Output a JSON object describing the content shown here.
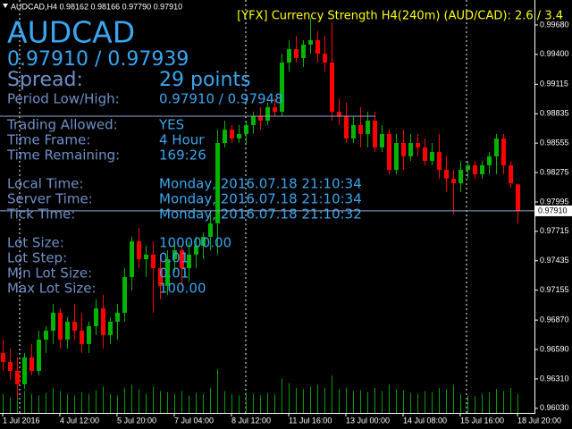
{
  "header": "AUDCAD,H4  0.98162 0.98166 0.97790 0.97910",
  "indicator_title": "[YFX] Currency Strength H4(240m) (AUD/CAD): 2.6 / 3.4",
  "info_panel": {
    "symbol": "AUDCAD",
    "prices": "0.97910 / 0.97939",
    "spread_label": "Spread:",
    "spread_value": "29 points",
    "rows": [
      [
        "Period Low/High:",
        "0.97910 / 0.97948"
      ],
      [
        "Trading Allowed:",
        "YES"
      ],
      [
        "Time Frame:",
        "4 Hour"
      ],
      [
        "Time Remaining:",
        "169:26"
      ],
      [
        "Local Time:",
        "Monday, 2016.07.18 21:10:34"
      ],
      [
        "Server Time:",
        "Monday, 2016.07.18 21:10:34"
      ],
      [
        "Tick Time:",
        "Monday, 2016.07.18 21:10:32"
      ],
      [
        "Lot Size:",
        "100000.00"
      ],
      [
        "Lot Step:",
        "0.01"
      ],
      [
        "Min Lot Size:",
        "0.01"
      ],
      [
        "Max Lot Size:",
        "100.00"
      ]
    ]
  },
  "chart_data": {
    "type": "candlestick",
    "categories": [
      "1 Jul 2016",
      null,
      null,
      null,
      null,
      null,
      null,
      null,
      "4 Jul 12:00",
      null,
      null,
      null,
      null,
      null,
      null,
      null,
      "5 Jul 20:00",
      null,
      null,
      null,
      null,
      null,
      null,
      null,
      "7 Jul 04:00",
      null,
      null,
      null,
      null,
      null,
      null,
      null,
      "8 Jul 12:00",
      null,
      null,
      null,
      null,
      null,
      null,
      null,
      "11 Jul 16:00",
      null,
      null,
      null,
      null,
      null,
      null,
      null,
      "13 Jul 00:00",
      null,
      null,
      null,
      null,
      null,
      null,
      null,
      "14 Jul 08:00",
      null,
      null,
      null,
      null,
      null,
      null,
      null,
      "15 Jul 16:00",
      null,
      null,
      null,
      null,
      null,
      null,
      null,
      "18 Jul 20:00"
    ],
    "open": [
      0.96557,
      0.96471,
      0.96386,
      0.96259,
      0.96514,
      0.96386,
      0.96684,
      0.96769,
      0.9694,
      0.96684,
      0.96854,
      0.96769,
      0.96642,
      0.96812,
      0.96982,
      0.96727,
      0.96854,
      0.9694,
      0.9728,
      0.9762,
      0.9745,
      0.97493,
      0.97365,
      0.97195,
      0.9745,
      0.97535,
      0.97365,
      0.97493,
      0.97578,
      0.97663,
      0.97791,
      0.98556,
      0.98684,
      0.98599,
      0.98642,
      0.98727,
      0.98812,
      0.98769,
      0.98897,
      0.98854,
      0.99322,
      0.9945,
      0.99365,
      0.99493,
      0.99535,
      0.99407,
      0.99322,
      0.98854,
      0.98812,
      0.98599,
      0.98727,
      0.98642,
      0.98769,
      0.98514,
      0.98642,
      0.98301,
      0.98556,
      0.98429,
      0.98556,
      0.98514,
      0.98386,
      0.98471,
      0.98301,
      0.98216,
      0.98173,
      0.98301,
      0.98344,
      0.98259,
      0.98344,
      0.98429,
      0.98599,
      0.98344,
      0.98162
    ],
    "high": [
      0.96684,
      0.96599,
      0.96514,
      0.96557,
      0.96642,
      0.96769,
      0.96812,
      0.97025,
      0.96982,
      0.96897,
      0.97025,
      0.9694,
      0.96854,
      0.97067,
      0.9711,
      0.96897,
      0.97025,
      0.97365,
      0.97663,
      0.97748,
      0.97578,
      0.9762,
      0.97493,
      0.97535,
      0.9762,
      0.97578,
      0.9762,
      0.97663,
      0.97706,
      0.97876,
      0.98684,
      0.98769,
      0.98727,
      0.98727,
      0.98769,
      0.98854,
      0.98897,
      0.98939,
      0.98982,
      0.99407,
      0.99535,
      0.99578,
      0.99535,
      0.99748,
      0.9962,
      0.99578,
      0.99705,
      0.98982,
      0.98939,
      0.98812,
      0.98897,
      0.98854,
      0.98854,
      0.98727,
      0.98684,
      0.98642,
      0.98684,
      0.98642,
      0.98642,
      0.98599,
      0.98556,
      0.98642,
      0.98429,
      0.98301,
      0.98386,
      0.98386,
      0.98386,
      0.98386,
      0.98471,
      0.98642,
      0.98642,
      0.98386,
      0.98166
    ],
    "low": [
      0.96386,
      0.96301,
      0.96131,
      0.96216,
      0.96344,
      0.96344,
      0.96557,
      0.96642,
      0.96599,
      0.96599,
      0.96684,
      0.96557,
      0.96557,
      0.96727,
      0.96599,
      0.96642,
      0.96684,
      0.96854,
      0.97152,
      0.97365,
      0.9728,
      0.9694,
      0.97067,
      0.9711,
      0.97323,
      0.97195,
      0.97238,
      0.97365,
      0.9745,
      0.97535,
      0.97493,
      0.98514,
      0.98556,
      0.98556,
      0.98556,
      0.98642,
      0.98684,
      0.98727,
      0.98812,
      0.98812,
      0.99237,
      0.99322,
      0.9928,
      0.99407,
      0.99322,
      0.99237,
      0.98769,
      0.98727,
      0.98556,
      0.98556,
      0.98514,
      0.98514,
      0.98471,
      0.98471,
      0.98259,
      0.98259,
      0.98301,
      0.98386,
      0.98429,
      0.98344,
      0.98344,
      0.98216,
      0.98088,
      0.97876,
      0.98088,
      0.98216,
      0.98216,
      0.98216,
      0.98259,
      0.98259,
      0.98259,
      0.98131,
      0.9779
    ],
    "close": [
      0.96471,
      0.96386,
      0.96259,
      0.96514,
      0.96386,
      0.96684,
      0.96769,
      0.9694,
      0.96684,
      0.96854,
      0.96769,
      0.96642,
      0.96812,
      0.96982,
      0.96727,
      0.96854,
      0.9694,
      0.9728,
      0.9762,
      0.9745,
      0.97493,
      0.97365,
      0.97195,
      0.9745,
      0.97535,
      0.97365,
      0.97493,
      0.97578,
      0.97663,
      0.97791,
      0.98556,
      0.98684,
      0.98599,
      0.98642,
      0.98727,
      0.98812,
      0.98769,
      0.98897,
      0.98854,
      0.99322,
      0.9945,
      0.99365,
      0.99493,
      0.99535,
      0.99407,
      0.99322,
      0.98854,
      0.98812,
      0.98599,
      0.98727,
      0.98642,
      0.98769,
      0.98514,
      0.98642,
      0.98301,
      0.98556,
      0.98429,
      0.98556,
      0.98514,
      0.98386,
      0.98471,
      0.98301,
      0.98216,
      0.98173,
      0.98301,
      0.98344,
      0.98259,
      0.98344,
      0.98429,
      0.98599,
      0.98344,
      0.98173,
      0.9791
    ],
    "volumes": [
      30,
      25,
      45,
      35,
      30,
      28,
      32,
      40,
      35,
      30,
      28,
      33,
      30,
      36,
      42,
      30,
      28,
      40,
      45,
      38,
      30,
      42,
      35,
      33,
      30,
      35,
      28,
      32,
      30,
      40,
      70,
      35,
      30,
      28,
      33,
      30,
      28,
      32,
      30,
      55,
      48,
      40,
      38,
      42,
      45,
      40,
      60,
      38,
      40,
      35,
      36,
      33,
      40,
      35,
      45,
      38,
      36,
      32,
      30,
      35,
      33,
      40,
      38,
      45,
      30,
      28,
      27,
      30,
      33,
      38,
      35,
      40,
      30
    ],
    "volume_lim": [
      0,
      100
    ],
    "up_color": "#00b400",
    "down_color": "#ff0000",
    "volume_color": "#00a000",
    "ylim": [
      0.95986,
      0.99918
    ],
    "yticks": [
      {
        "value": 0.9968,
        "label": "0.99680"
      },
      {
        "value": 0.994,
        "label": "0.99400"
      },
      0.99115,
      0.98835,
      0.98555,
      0.98275,
      0.97995,
      0.97715,
      0.97435,
      0.97155,
      {
        "value": 0.9687,
        "label": "0.96870"
      },
      {
        "value": 0.9659,
        "label": "0.96590"
      },
      {
        "value": 0.9631,
        "label": "0.96310"
      },
      {
        "value": 0.9603,
        "label": "0.96030"
      }
    ],
    "price_line": {
      "value": 0.9791,
      "label": "0.97910"
    }
  }
}
